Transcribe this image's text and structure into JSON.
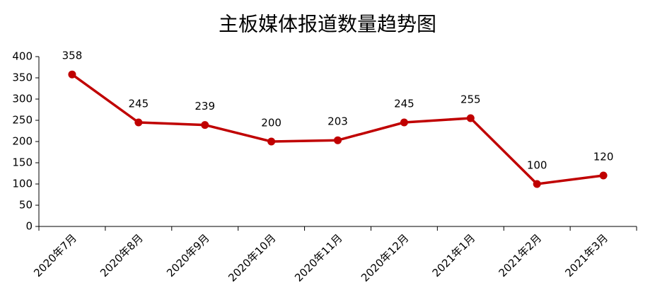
{
  "chart_data": {
    "type": "line",
    "title": "主板媒体报道数量趋势图",
    "categories": [
      "2020年7月",
      "2020年8月",
      "2020年9月",
      "2020年10月",
      "2020年11月",
      "2020年12月",
      "2021年1月",
      "2021年2月",
      "2021年3月"
    ],
    "values": [
      358,
      245,
      239,
      200,
      203,
      245,
      255,
      100,
      120
    ],
    "color": "#c00000",
    "ylim": [
      0,
      400
    ],
    "yticks": [
      0,
      50,
      100,
      150,
      200,
      250,
      300,
      350,
      400
    ],
    "grid": false
  }
}
